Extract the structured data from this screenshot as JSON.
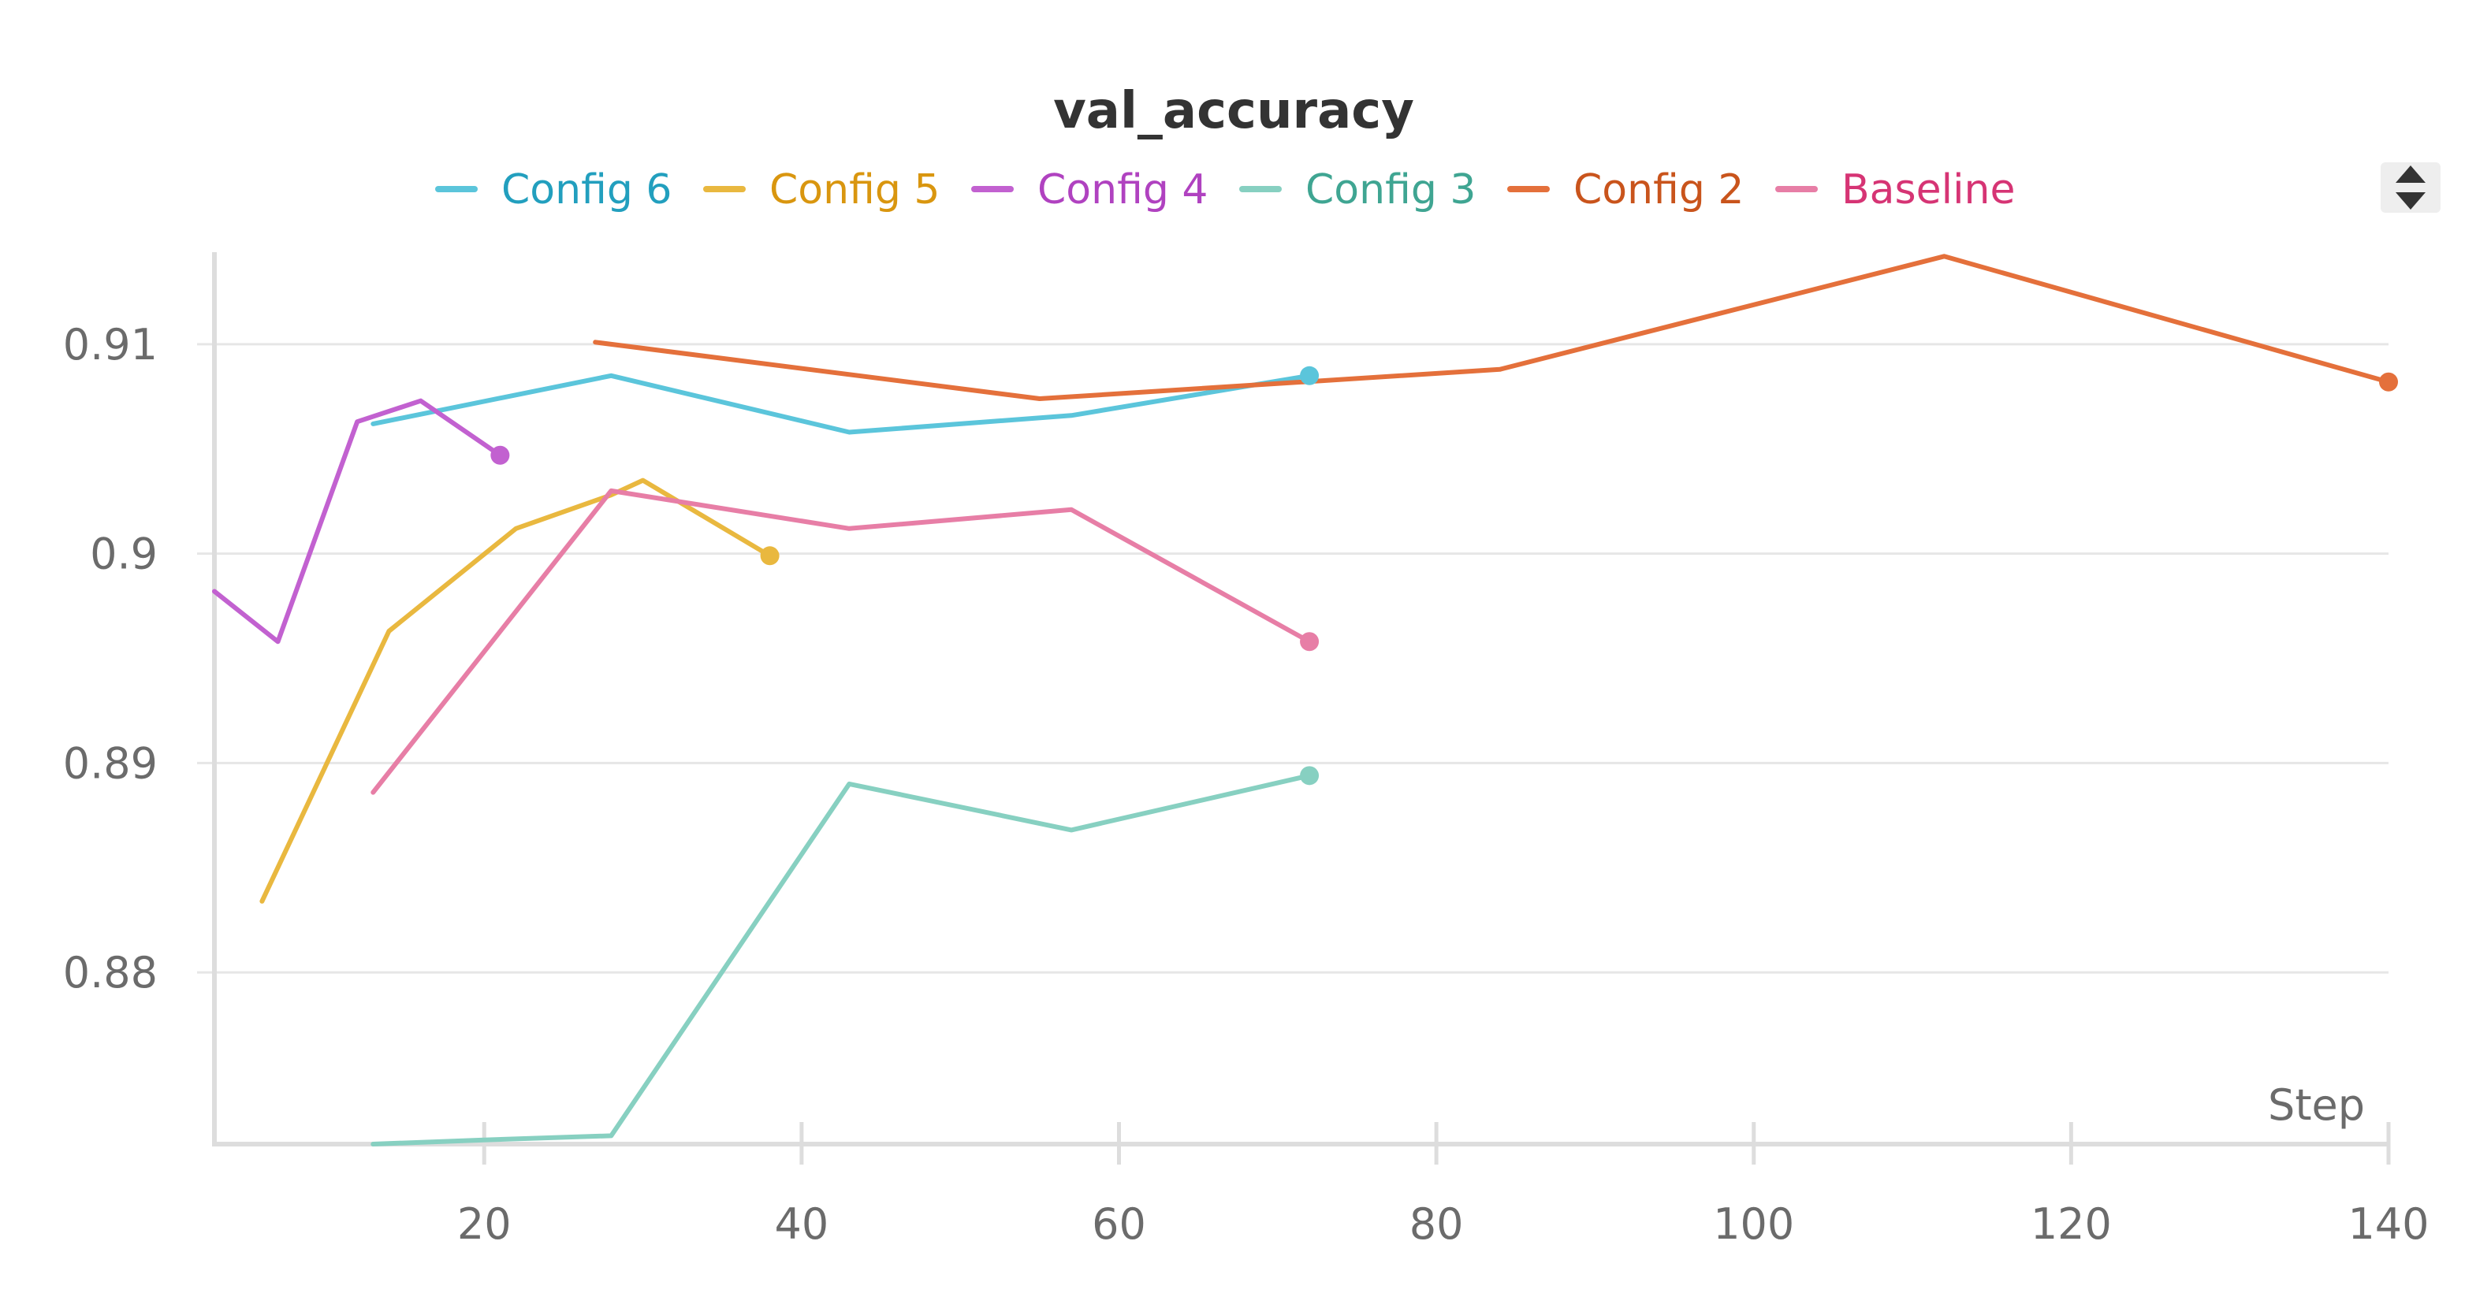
{
  "chart_data": {
    "type": "line",
    "title": "val_accuracy",
    "xlabel": "Step",
    "ylabel": "",
    "xlim": [
      3,
      140
    ],
    "ylim": [
      0.8718,
      0.9144
    ],
    "xticks": [
      20,
      40,
      60,
      80,
      100,
      120,
      140
    ],
    "yticks": [
      0.88,
      0.89,
      0.9,
      0.91
    ],
    "ytick_labels": [
      "0.88",
      "0.89",
      "0.9",
      "0.91"
    ],
    "grid": true,
    "legend_position": "top",
    "series": [
      {
        "name": "Config 6",
        "color": "#5bc5db",
        "text_color": "#229fbe",
        "x": [
          13,
          28,
          43,
          57,
          72
        ],
        "y": [
          0.9062,
          0.9085,
          0.9058,
          0.9066,
          0.9085
        ]
      },
      {
        "name": "Config 5",
        "color": "#e9b83f",
        "text_color": "#d9960f",
        "x": [
          6,
          14,
          22,
          28,
          30,
          38
        ],
        "y": [
          0.8834,
          0.8963,
          0.9012,
          0.9028,
          0.9035,
          0.8999
        ]
      },
      {
        "name": "Config 4",
        "color": "#c261d0",
        "text_color": "#b042c0",
        "x": [
          3,
          7,
          12,
          16,
          21
        ],
        "y": [
          0.8982,
          0.8958,
          0.9063,
          0.9073,
          0.9047
        ]
      },
      {
        "name": "Config 3",
        "color": "#87d0c1",
        "text_color": "#3fa592",
        "x": [
          13,
          20,
          28,
          43,
          57,
          72
        ],
        "y": [
          0.8718,
          0.872,
          0.8722,
          0.889,
          0.8868,
          0.8894
        ]
      },
      {
        "name": "Config 2",
        "color": "#e4703b",
        "text_color": "#c9541c",
        "x": [
          27,
          55,
          84,
          112,
          140
        ],
        "y": [
          0.9101,
          0.9074,
          0.9088,
          0.9142,
          0.9082
        ]
      },
      {
        "name": "Baseline",
        "color": "#e77ea6",
        "text_color": "#d63474",
        "x": [
          13,
          28,
          43,
          57,
          72
        ],
        "y": [
          0.8886,
          0.903,
          0.9012,
          0.9021,
          0.8958
        ]
      }
    ]
  }
}
